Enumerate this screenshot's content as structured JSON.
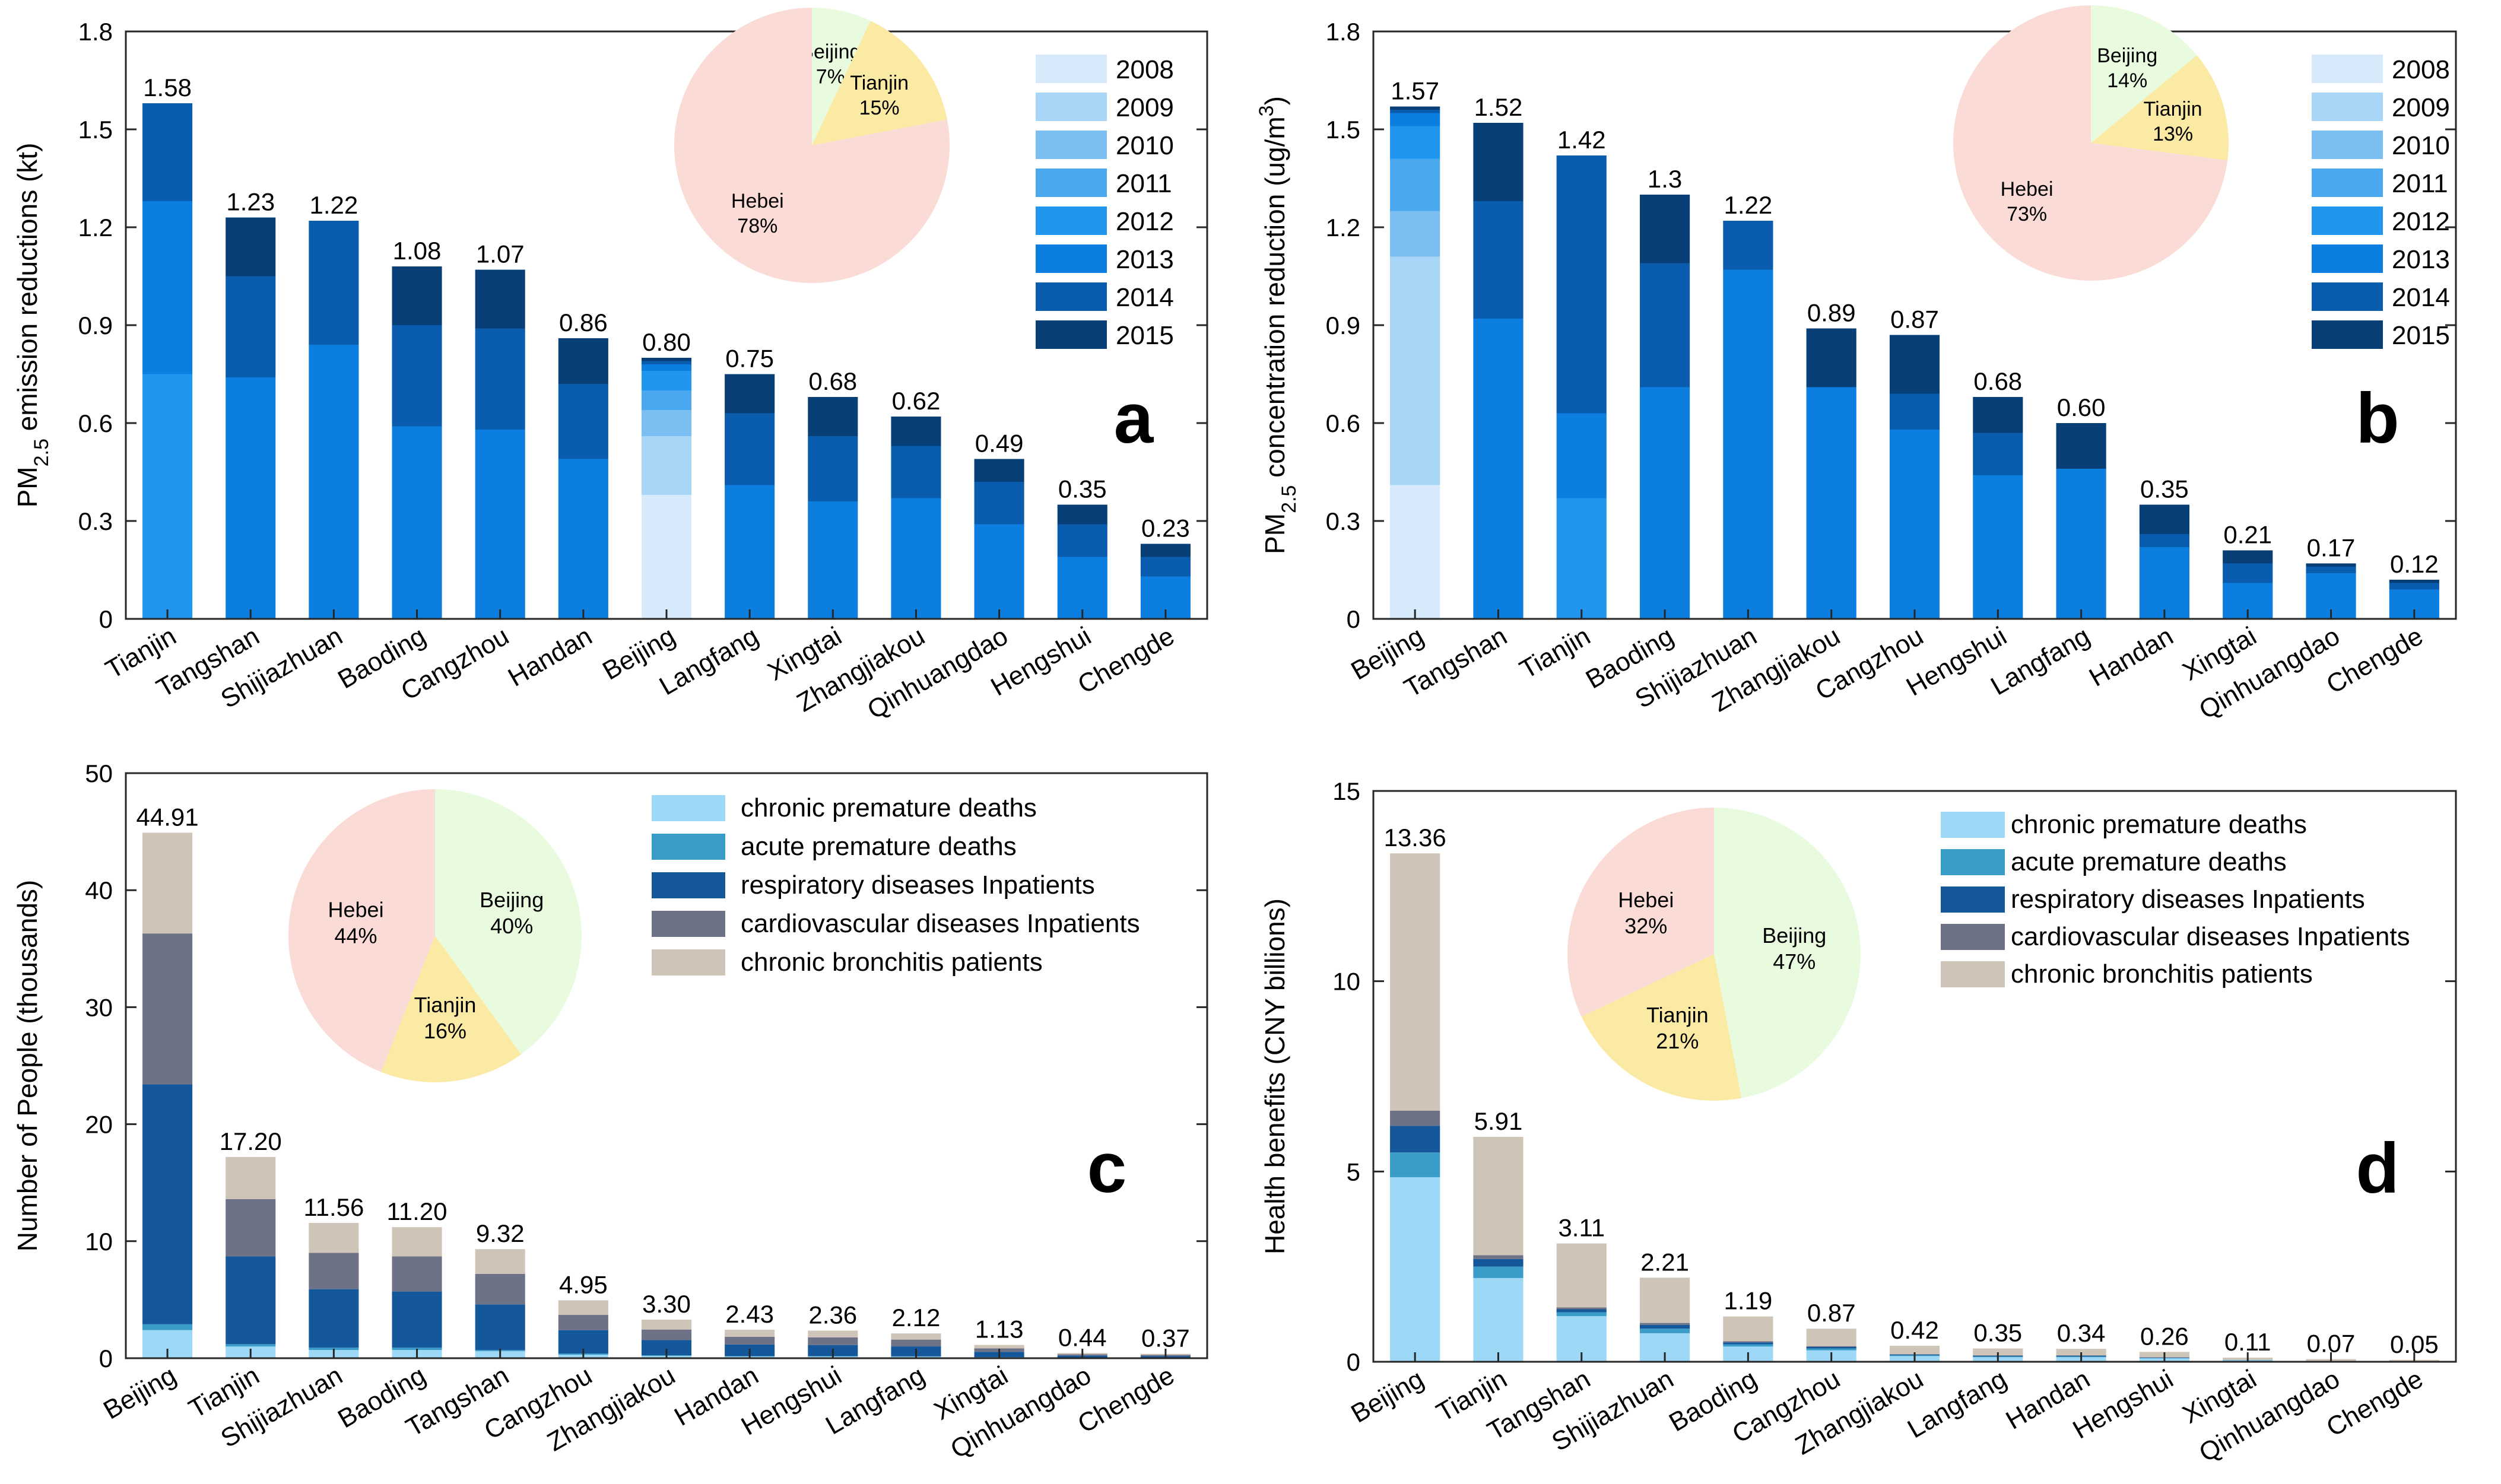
{
  "palette": {
    "years": [
      "#d6eafb",
      "#a9d6f7",
      "#7bbff2",
      "#4aa8ee",
      "#2196ef",
      "#0b7ee0",
      "#0a5cae",
      "#083f76"
    ],
    "health": [
      "#9dd9f7",
      "#3a9cc8",
      "#15579b",
      "#6e7286",
      "#cfc4b8"
    ],
    "pie": {
      "Beijing": "#e9fbdf",
      "Tianjin": "#fbeaa3",
      "Hebei": "#fadbd6"
    }
  },
  "chart_data": [
    {
      "id": "a",
      "panel_letter": "a",
      "type": "bar",
      "stacked": true,
      "ylabel": {
        "main": "PM",
        "sub": "2.5",
        "rest": " emission reductions (kt)"
      },
      "ylim": [
        0,
        1.8
      ],
      "yticks": [
        "0",
        "0.3",
        "0.6",
        "0.9",
        "1.2",
        "1.5",
        "1.8"
      ],
      "ytick_values": [
        0,
        0.3,
        0.6,
        0.9,
        1.2,
        1.5,
        1.8
      ],
      "legend_placement": "top-right",
      "series_names": [
        "2008",
        "2009",
        "2010",
        "2011",
        "2012",
        "2013",
        "2014",
        "2015"
      ],
      "categories": [
        "Tianjin",
        "Tangshan",
        "Shijiazhuan",
        "Baoding",
        "Cangzhou",
        "Handan",
        "Beijing",
        "Langfang",
        "Xingtai",
        "Zhangjiakou",
        "Qinhuangdao",
        "Hengshui",
        "Chengde"
      ],
      "totals": [
        1.58,
        1.23,
        1.22,
        1.08,
        1.07,
        0.86,
        0.8,
        0.75,
        0.68,
        0.62,
        0.49,
        0.35,
        0.23
      ],
      "total_labels": [
        "1.58",
        "1.23",
        "1.22",
        "1.08",
        "1.07",
        "0.86",
        "0.80",
        "0.75",
        "0.68",
        "0.62",
        "0.49",
        "0.35",
        "0.23"
      ],
      "stacks": [
        [
          0,
          0,
          0,
          0,
          0.75,
          0.53,
          0.3,
          0
        ],
        [
          0,
          0,
          0,
          0,
          0,
          0.74,
          0.31,
          0.18
        ],
        [
          0,
          0,
          0,
          0,
          0,
          0.84,
          0.38,
          0
        ],
        [
          0,
          0,
          0,
          0,
          0,
          0.59,
          0.31,
          0.18
        ],
        [
          0,
          0,
          0,
          0,
          0,
          0.58,
          0.31,
          0.18
        ],
        [
          0,
          0,
          0,
          0,
          0,
          0.49,
          0.23,
          0.14
        ],
        [
          0.38,
          0.18,
          0.08,
          0.06,
          0.06,
          0.02,
          0.01,
          0.01
        ],
        [
          0,
          0,
          0,
          0,
          0,
          0.41,
          0.22,
          0.12
        ],
        [
          0,
          0,
          0,
          0,
          0,
          0.36,
          0.2,
          0.12
        ],
        [
          0,
          0,
          0,
          0,
          0,
          0.37,
          0.16,
          0.09
        ],
        [
          0,
          0,
          0,
          0,
          0,
          0.29,
          0.13,
          0.07
        ],
        [
          0,
          0,
          0,
          0,
          0,
          0.19,
          0.1,
          0.06
        ],
        [
          0,
          0,
          0,
          0,
          0,
          0.13,
          0.06,
          0.04
        ]
      ],
      "pie": [
        {
          "name": "Hebei",
          "label": "Hebei",
          "pct": "78%",
          "value": 78
        },
        {
          "name": "Beijing",
          "label": "Beijing",
          "pct": "7%",
          "value": 7
        },
        {
          "name": "Tianjin",
          "label": "Tianjin",
          "pct": "15%",
          "value": 15
        }
      ]
    },
    {
      "id": "b",
      "panel_letter": "b",
      "type": "bar",
      "stacked": true,
      "ylabel": {
        "main": "PM",
        "sub": "2.5",
        "rest": " concentration reduction (ug/m",
        "sup": "3",
        "end": ")"
      },
      "ylim": [
        0,
        1.8
      ],
      "yticks": [
        "0",
        "0.3",
        "0.6",
        "0.9",
        "1.2",
        "1.5",
        "1.8"
      ],
      "ytick_values": [
        0,
        0.3,
        0.6,
        0.9,
        1.2,
        1.5,
        1.8
      ],
      "legend_placement": "top-right",
      "series_names": [
        "2008",
        "2009",
        "2010",
        "2011",
        "2012",
        "2013",
        "2014",
        "2015"
      ],
      "categories": [
        "Beijing",
        "Tangshan",
        "Tianjin",
        "Baoding",
        "Shijiazhuan",
        "Zhangjiakou",
        "Cangzhou",
        "Hengshui",
        "Langfang",
        "Handan",
        "Xingtai",
        "Qinhuangdao",
        "Chengde"
      ],
      "totals": [
        1.57,
        1.52,
        1.42,
        1.3,
        1.22,
        0.89,
        0.87,
        0.68,
        0.6,
        0.35,
        0.21,
        0.17,
        0.12
      ],
      "total_labels": [
        "1.57",
        "1.52",
        "1.42",
        "1.3",
        "1.22",
        "0.89",
        "0.87",
        "0.68",
        "0.60",
        "0.35",
        "0.21",
        "0.17",
        "0.12"
      ],
      "stacks": [
        [
          0.41,
          0.7,
          0.14,
          0.16,
          0.1,
          0.04,
          0.01,
          0.01
        ],
        [
          0,
          0,
          0,
          0,
          0,
          0.92,
          0.36,
          0.24
        ],
        [
          0,
          0,
          0,
          0,
          0.37,
          0.26,
          0.79,
          0
        ],
        [
          0,
          0,
          0,
          0,
          0,
          0.71,
          0.38,
          0.21
        ],
        [
          0,
          0,
          0,
          0,
          0,
          1.07,
          0.15,
          0
        ],
        [
          0,
          0,
          0,
          0,
          0,
          0.71,
          0,
          0.18
        ],
        [
          0,
          0,
          0,
          0,
          0,
          0.58,
          0.11,
          0.18
        ],
        [
          0,
          0,
          0,
          0,
          0,
          0.44,
          0.13,
          0.11
        ],
        [
          0,
          0,
          0,
          0,
          0,
          0.46,
          0,
          0.14
        ],
        [
          0,
          0,
          0,
          0,
          0,
          0.22,
          0.04,
          0.09
        ],
        [
          0,
          0,
          0,
          0,
          0,
          0.11,
          0.06,
          0.04
        ],
        [
          0,
          0,
          0,
          0,
          0,
          0.14,
          0.02,
          0.01
        ],
        [
          0,
          0,
          0,
          0,
          0,
          0.09,
          0.02,
          0.01
        ]
      ],
      "pie": [
        {
          "name": "Hebei",
          "label": "Hebei",
          "pct": "73%",
          "value": 73
        },
        {
          "name": "Beijing",
          "label": "Beijing",
          "pct": "14%",
          "value": 14
        },
        {
          "name": "Tianjin",
          "label": "Tianjin",
          "pct": "13%",
          "value": 13
        }
      ]
    },
    {
      "id": "c",
      "panel_letter": "c",
      "type": "bar",
      "stacked": true,
      "ylabel": {
        "main": "Number of People (thousands)"
      },
      "ylim": [
        0,
        50
      ],
      "yticks": [
        "0",
        "10",
        "20",
        "30",
        "40",
        "50"
      ],
      "ytick_values": [
        0,
        10,
        20,
        30,
        40,
        50
      ],
      "legend_placement": "top-right",
      "series_names": [
        "chronic premature deaths",
        "acute premature deaths",
        "respiratory diseases Inpatients",
        "cardiovascular diseases Inpatients",
        "chronic bronchitis patients"
      ],
      "categories": [
        "Beijing",
        "Tianjin",
        "Shijiazhuan",
        "Baoding",
        "Tangshan",
        "Cangzhou",
        "Zhangjiakou",
        "Handan",
        "Hengshui",
        "Langfang",
        "Xingtai",
        "Qinhuangdao",
        "Chengde"
      ],
      "totals": [
        44.91,
        17.2,
        11.56,
        11.2,
        9.32,
        4.95,
        3.3,
        2.43,
        2.36,
        2.12,
        1.13,
        0.44,
        0.37
      ],
      "total_labels": [
        "44.91",
        "17.20",
        "11.56",
        "11.20",
        "9.32",
        "4.95",
        "3.30",
        "2.43",
        "2.36",
        "2.12",
        "1.13",
        "0.44",
        "0.37"
      ],
      "stacks": [
        [
          2.4,
          0.5,
          20.5,
          12.9,
          8.61
        ],
        [
          1.0,
          0.2,
          7.5,
          4.9,
          3.6
        ],
        [
          0.7,
          0.2,
          5.0,
          3.1,
          2.56
        ],
        [
          0.7,
          0.2,
          4.8,
          3.0,
          2.5
        ],
        [
          0.6,
          0.1,
          3.9,
          2.6,
          2.12
        ],
        [
          0.3,
          0.1,
          2.0,
          1.3,
          1.25
        ],
        [
          0.2,
          0.05,
          1.3,
          0.9,
          0.85
        ],
        [
          0.15,
          0.03,
          1.0,
          0.65,
          0.6
        ],
        [
          0.15,
          0.03,
          0.95,
          0.65,
          0.58
        ],
        [
          0.13,
          0.03,
          0.85,
          0.58,
          0.53
        ],
        [
          0.07,
          0.02,
          0.45,
          0.3,
          0.29
        ],
        [
          0.03,
          0.01,
          0.18,
          0.12,
          0.1
        ],
        [
          0.02,
          0.01,
          0.15,
          0.1,
          0.09
        ]
      ],
      "pie": [
        {
          "name": "Beijing",
          "label": "Beijing",
          "pct": "40%",
          "value": 40
        },
        {
          "name": "Tianjin",
          "label": "Tianjin",
          "pct": "16%",
          "value": 16
        },
        {
          "name": "Hebei",
          "label": "Hebei",
          "pct": "44%",
          "value": 44
        }
      ]
    },
    {
      "id": "d",
      "panel_letter": "d",
      "type": "bar",
      "stacked": true,
      "ylabel": {
        "main": "Health benefits  (CNY billions)"
      },
      "ylim": [
        0,
        15
      ],
      "yticks": [
        "0",
        "5",
        "10",
        "15"
      ],
      "ytick_values": [
        0,
        5,
        10,
        15
      ],
      "legend_placement": "top-right",
      "series_names": [
        "chronic premature deaths",
        "acute premature deaths",
        "respiratory diseases Inpatients",
        "cardiovascular diseases Inpatients",
        "chronic bronchitis patients"
      ],
      "categories": [
        "Beijing",
        "Tianjin",
        "Tangshan",
        "Shijiazhuan",
        "Baoding",
        "Cangzhou",
        "Zhangjiakou",
        "Langfang",
        "Handan",
        "Hengshui",
        "Xingtai",
        "Qinhuangdao",
        "Chengde"
      ],
      "totals": [
        13.36,
        5.91,
        3.11,
        2.21,
        1.19,
        0.87,
        0.42,
        0.35,
        0.34,
        0.26,
        0.11,
        0.07,
        0.05
      ],
      "total_labels": [
        "13.36",
        "5.91",
        "3.11",
        "2.21",
        "1.19",
        "0.87",
        "0.42",
        "0.35",
        "0.34",
        "0.26",
        "0.11",
        "0.07",
        "0.05"
      ],
      "stacks": [
        [
          4.85,
          0.65,
          0.7,
          0.4,
          6.76
        ],
        [
          2.2,
          0.3,
          0.2,
          0.1,
          3.11
        ],
        [
          1.2,
          0.1,
          0.08,
          0.05,
          1.68
        ],
        [
          0.75,
          0.12,
          0.1,
          0.05,
          1.19
        ],
        [
          0.4,
          0.06,
          0.05,
          0.03,
          0.65
        ],
        [
          0.3,
          0.05,
          0.04,
          0.02,
          0.46
        ],
        [
          0.15,
          0.02,
          0.02,
          0.01,
          0.22
        ],
        [
          0.12,
          0.02,
          0.02,
          0.01,
          0.18
        ],
        [
          0.12,
          0.02,
          0.02,
          0.01,
          0.17
        ],
        [
          0.09,
          0.01,
          0.01,
          0.01,
          0.14
        ],
        [
          0.04,
          0.01,
          0.0,
          0.0,
          0.06
        ],
        [
          0.02,
          0.0,
          0.0,
          0.0,
          0.05
        ],
        [
          0.02,
          0.0,
          0.0,
          0.0,
          0.03
        ]
      ],
      "pie": [
        {
          "name": "Beijing",
          "label": "Beijing",
          "pct": "47%",
          "value": 47
        },
        {
          "name": "Tianjin",
          "label": "Tianjin",
          "pct": "21%",
          "value": 21
        },
        {
          "name": "Hebei",
          "label": "Hebei",
          "pct": "32%",
          "value": 32
        }
      ]
    }
  ]
}
